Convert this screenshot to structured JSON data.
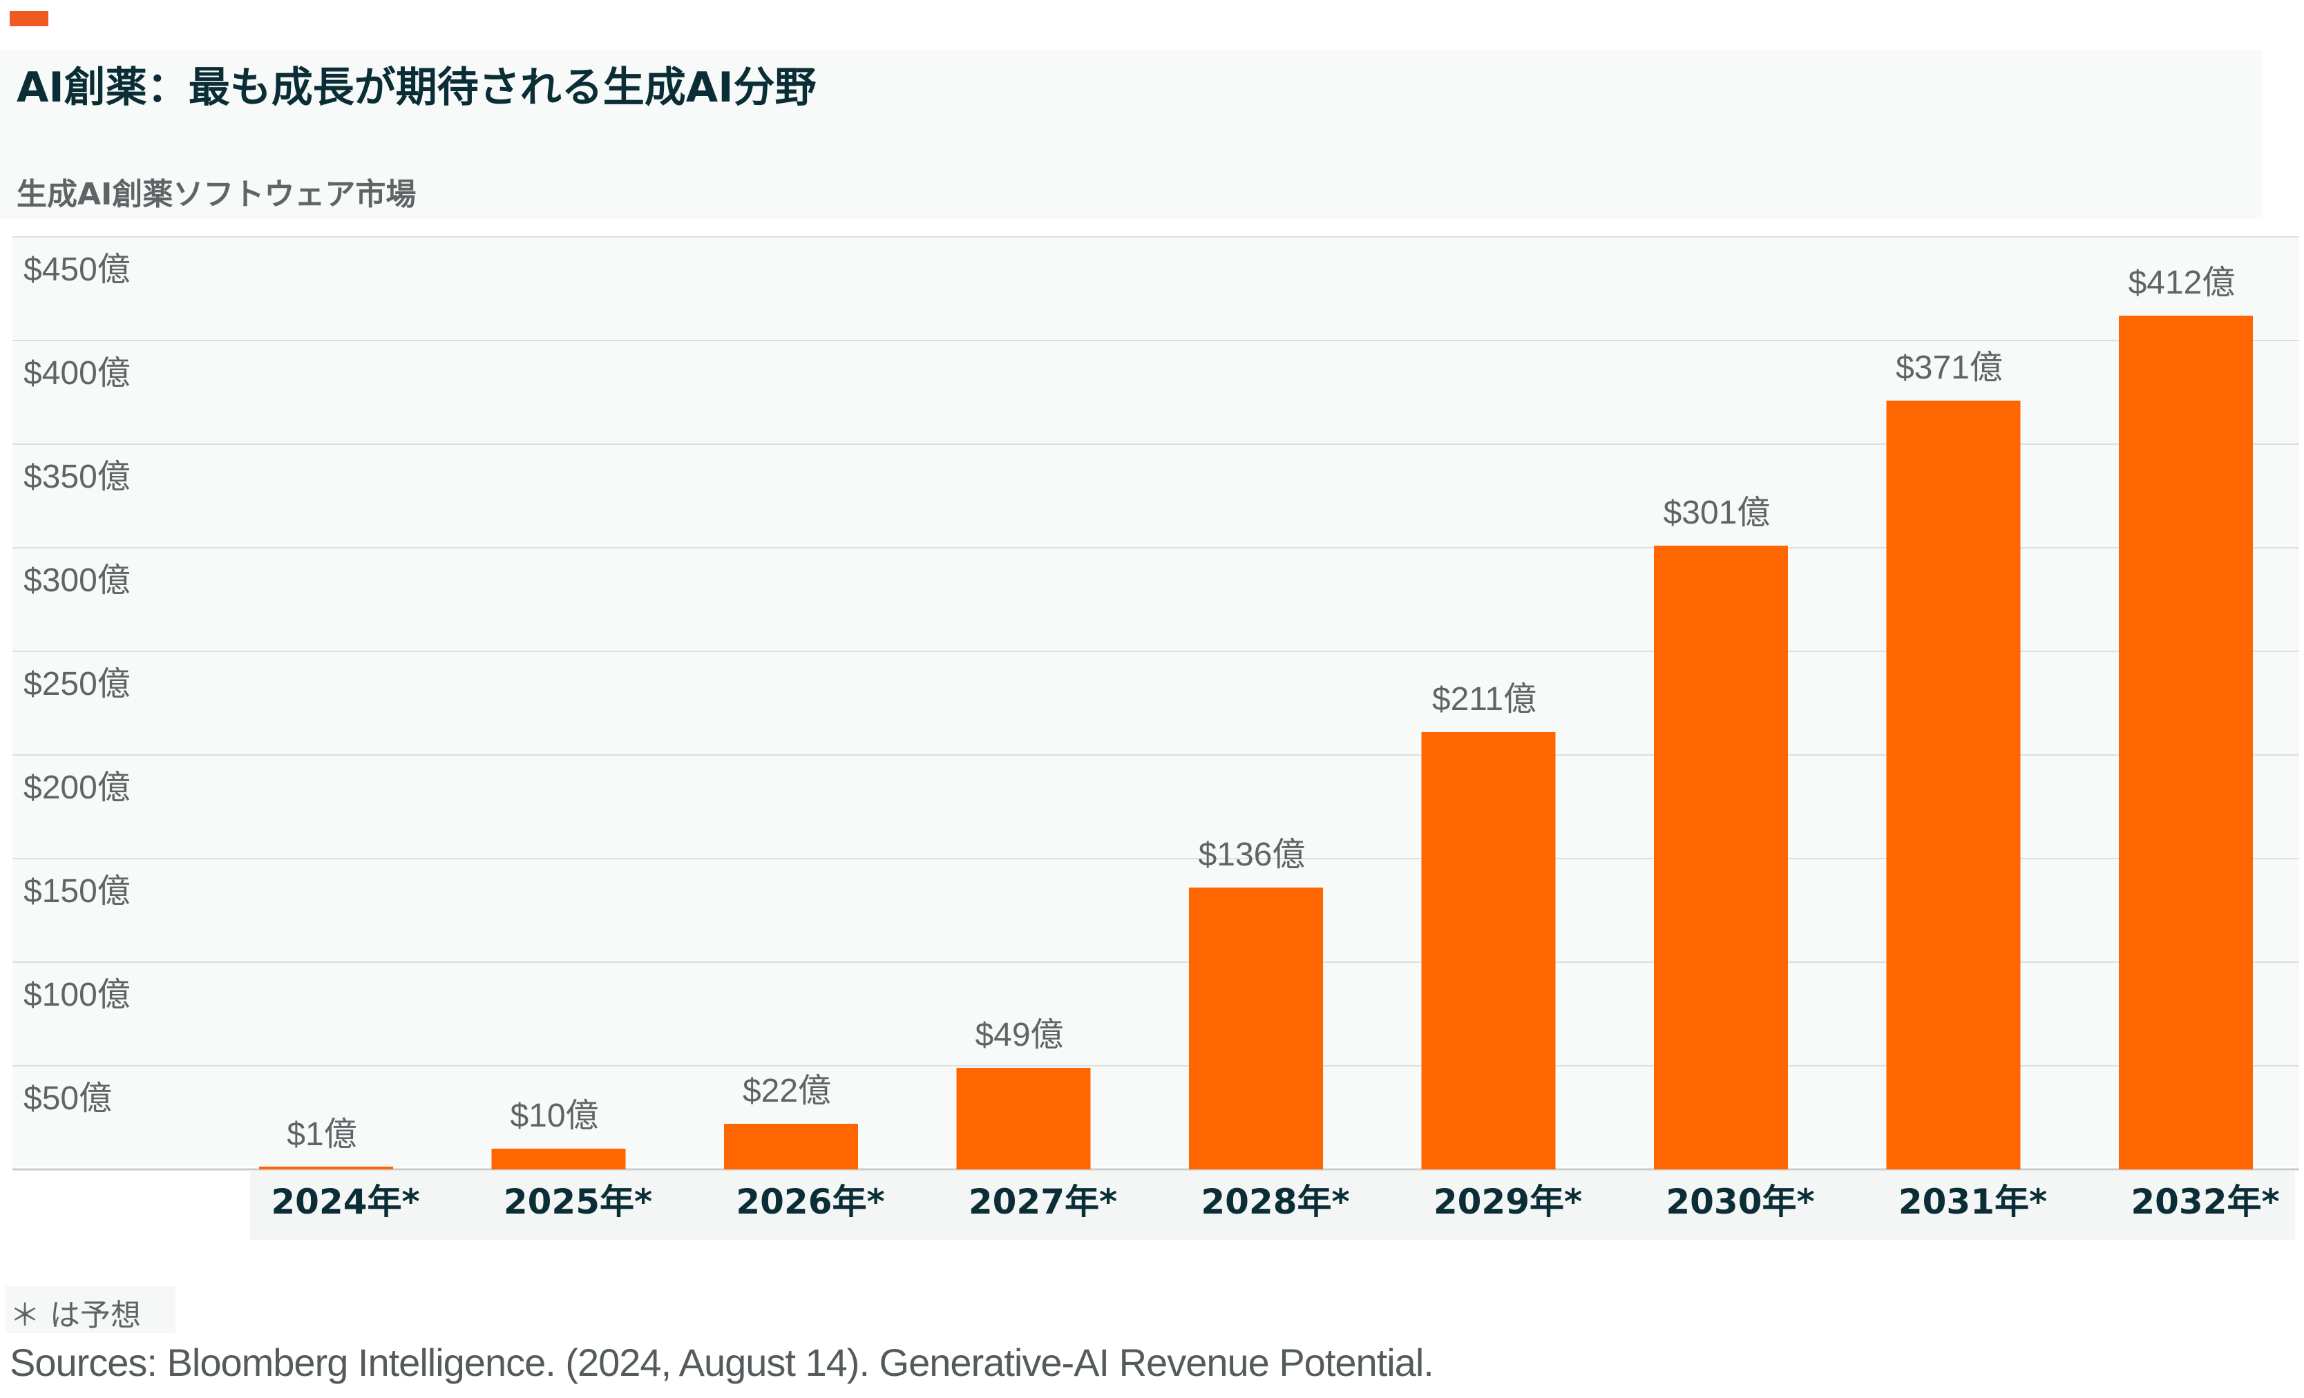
{
  "header": {
    "title": "AI創薬：最も成長が期待される生成AI分野",
    "subtitle": "生成AI創薬ソフトウェア市場"
  },
  "footer": {
    "footnote": "＊ は予想",
    "source": "Sources: Bloomberg Intelligence. (2024, August 14). Generative-AI Revenue Potential."
  },
  "colors": {
    "bar": "#ff6600",
    "accent": "#f05a22",
    "title": "#0b2e36",
    "label": "#5f6566",
    "category": "#0b2e36",
    "grid": "#dcdfde"
  },
  "chart_data": {
    "type": "bar",
    "title": "生成AI創薬ソフトウェア市場",
    "xlabel": "",
    "ylabel": "",
    "categories": [
      "2024年*",
      "2025年*",
      "2026年*",
      "2027年*",
      "2028年*",
      "2029年*",
      "2030年*",
      "2031年*",
      "2032年*"
    ],
    "values": [
      1,
      10,
      22,
      49,
      136,
      211,
      301,
      371,
      412
    ],
    "value_labels": [
      "$1億",
      "$10億",
      "$22億",
      "$49億",
      "$136億",
      "$211億",
      "$301億",
      "$371億",
      "$412億"
    ],
    "ylim": [
      0,
      450
    ],
    "yticks": [
      {
        "value": 50,
        "label": "$50億"
      },
      {
        "value": 100,
        "label": "$100億"
      },
      {
        "value": 150,
        "label": "$150億"
      },
      {
        "value": 200,
        "label": "$200億"
      },
      {
        "value": 250,
        "label": "$250億"
      },
      {
        "value": 300,
        "label": "$300億"
      },
      {
        "value": 350,
        "label": "$350億"
      },
      {
        "value": 400,
        "label": "$400億"
      },
      {
        "value": 450,
        "label": "$450億"
      }
    ],
    "grid": true,
    "legend": "none"
  }
}
